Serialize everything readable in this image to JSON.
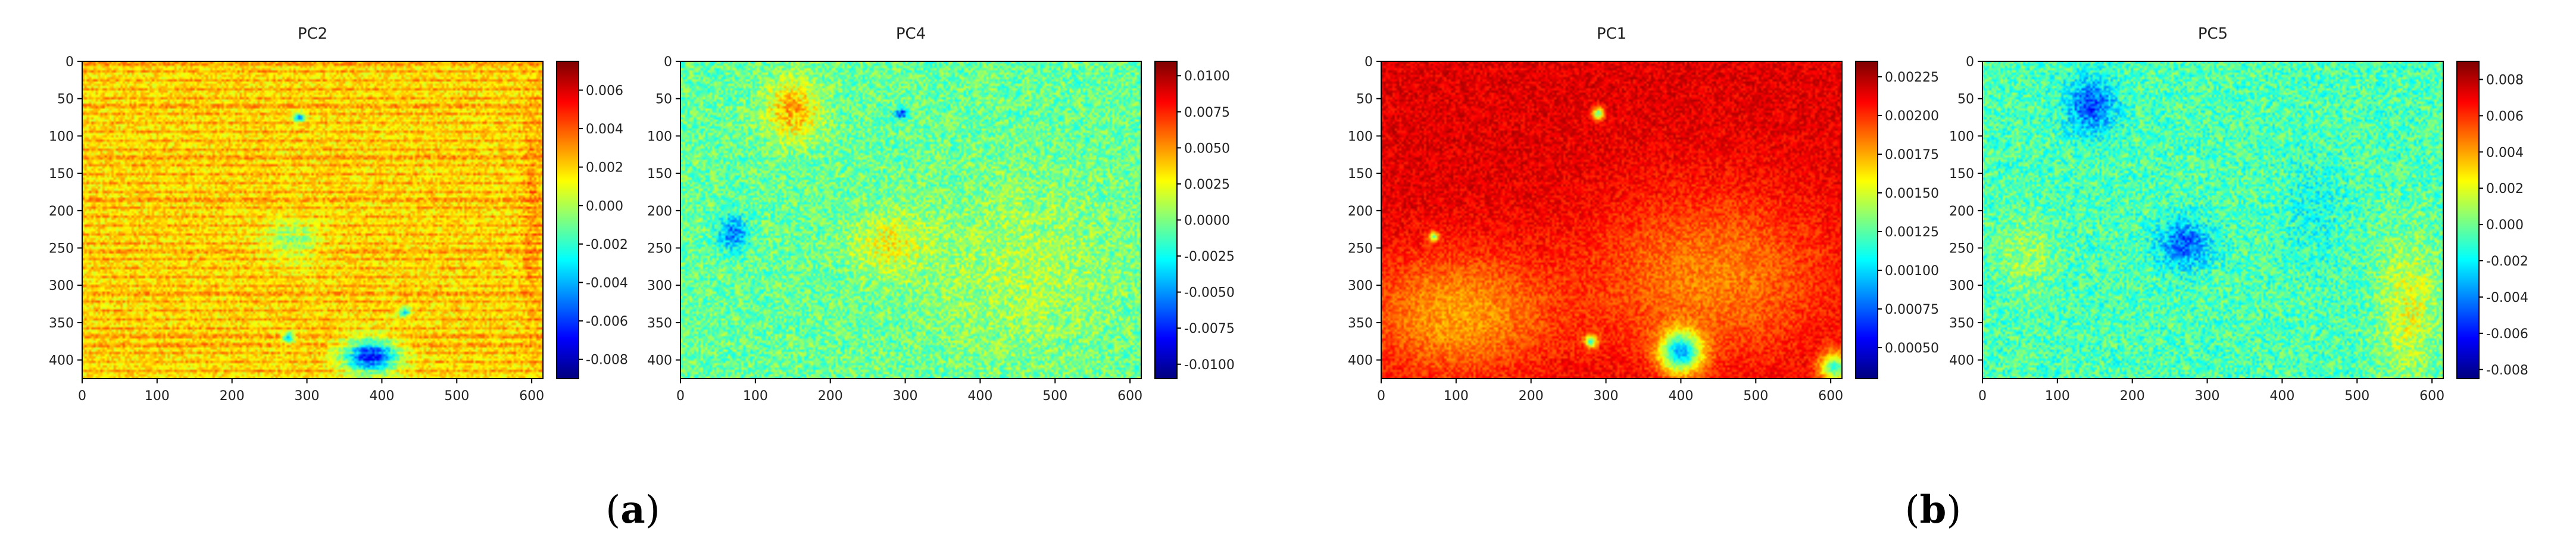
{
  "figure": {
    "panel_labels": [
      {
        "bold": "a",
        "before": "(",
        "after": ")"
      },
      {
        "bold": "b",
        "before": "(",
        "after": ")"
      }
    ]
  },
  "colormap": {
    "name": "jet",
    "stops": [
      "#00007f",
      "#0000ff",
      "#007fff",
      "#00ffff",
      "#7fff7f",
      "#ffff00",
      "#ff7f00",
      "#ff0000",
      "#7f0000"
    ]
  },
  "chart_data": [
    {
      "type": "heatmap",
      "title": "PC2",
      "panel": "a",
      "x_ticks": [
        "0",
        "100",
        "200",
        "300",
        "400",
        "500",
        "600"
      ],
      "y_ticks": [
        "0",
        "50",
        "100",
        "150",
        "200",
        "250",
        "300",
        "350",
        "400"
      ],
      "xlim": [
        0,
        615
      ],
      "ylim": [
        425,
        0
      ],
      "colorbar": {
        "vmin": -0.009,
        "vmax": 0.0075,
        "ticks": [
          "0.006",
          "0.004",
          "0.002",
          "0.000",
          "-0.002",
          "-0.004",
          "-0.006",
          "-0.008"
        ],
        "tick_values": [
          0.006,
          0.004,
          0.002,
          0.0,
          -0.002,
          -0.004,
          -0.006,
          -0.008
        ]
      },
      "field": {
        "base": 0.0017,
        "noise": 0.0012,
        "stripes": 0.0012,
        "blobs": [
          {
            "x": 280,
            "y": 240,
            "rx": 45,
            "ry": 35,
            "v": -0.0025
          },
          {
            "x": 385,
            "y": 395,
            "rx": 45,
            "ry": 28,
            "v": -0.0085
          },
          {
            "x": 290,
            "y": 75,
            "rx": 10,
            "ry": 8,
            "v": -0.006
          },
          {
            "x": 430,
            "y": 335,
            "rx": 10,
            "ry": 8,
            "v": -0.005
          },
          {
            "x": 275,
            "y": 370,
            "rx": 10,
            "ry": 9,
            "v": -0.006
          },
          {
            "x": 600,
            "y": 200,
            "rx": 15,
            "ry": 200,
            "v": 0.001
          }
        ]
      }
    },
    {
      "type": "heatmap",
      "title": "PC4",
      "panel": "a",
      "x_ticks": [
        "0",
        "100",
        "200",
        "300",
        "400",
        "500",
        "600"
      ],
      "y_ticks": [
        "0",
        "50",
        "100",
        "150",
        "200",
        "250",
        "300",
        "350",
        "400"
      ],
      "xlim": [
        0,
        615
      ],
      "ylim": [
        425,
        0
      ],
      "colorbar": {
        "vmin": -0.011,
        "vmax": 0.011,
        "ticks": [
          "0.0100",
          "0.0075",
          "0.0050",
          "0.0025",
          "0.0000",
          "-0.0025",
          "-0.0050",
          "-0.0075",
          "-0.0100"
        ],
        "tick_values": [
          0.01,
          0.0075,
          0.005,
          0.0025,
          0.0,
          -0.0025,
          -0.005,
          -0.0075,
          -0.01
        ]
      },
      "field": {
        "base": -0.0005,
        "noise": 0.0022,
        "stripes": 0.0,
        "blobs": [
          {
            "x": 150,
            "y": 65,
            "rx": 45,
            "ry": 50,
            "v": 0.005
          },
          {
            "x": 280,
            "y": 245,
            "rx": 60,
            "ry": 50,
            "v": 0.003
          },
          {
            "x": 70,
            "y": 230,
            "rx": 25,
            "ry": 30,
            "v": -0.005
          },
          {
            "x": 295,
            "y": 70,
            "rx": 12,
            "ry": 8,
            "v": -0.007
          },
          {
            "x": 460,
            "y": 280,
            "rx": 160,
            "ry": 150,
            "v": 0.0015
          }
        ]
      }
    },
    {
      "type": "heatmap",
      "title": "PC1",
      "panel": "b",
      "x_ticks": [
        "0",
        "100",
        "200",
        "300",
        "400",
        "500",
        "600"
      ],
      "y_ticks": [
        "0",
        "50",
        "100",
        "150",
        "200",
        "250",
        "300",
        "350",
        "400"
      ],
      "xlim": [
        0,
        615
      ],
      "ylim": [
        425,
        0
      ],
      "colorbar": {
        "vmin": 0.0003,
        "vmax": 0.00235,
        "ticks": [
          "0.00225",
          "0.00200",
          "0.00175",
          "0.00150",
          "0.00125",
          "0.00100",
          "0.00075",
          "0.00050"
        ],
        "tick_values": [
          0.00225,
          0.002,
          0.00175,
          0.0015,
          0.00125,
          0.001,
          0.00075,
          0.0005
        ]
      },
      "field": {
        "base": 0.00215,
        "noise": 0.00012,
        "stripes": 0.0,
        "blobs": [
          {
            "x": 100,
            "y": 340,
            "rx": 160,
            "ry": 110,
            "v": -0.00038
          },
          {
            "x": 440,
            "y": 290,
            "rx": 210,
            "ry": 150,
            "v": -0.00032
          },
          {
            "x": 400,
            "y": 390,
            "rx": 35,
            "ry": 35,
            "v": -0.0011
          },
          {
            "x": 605,
            "y": 410,
            "rx": 25,
            "ry": 25,
            "v": -0.0009
          },
          {
            "x": 290,
            "y": 70,
            "rx": 10,
            "ry": 10,
            "v": -0.0009
          },
          {
            "x": 280,
            "y": 375,
            "rx": 10,
            "ry": 10,
            "v": -0.0009
          },
          {
            "x": 70,
            "y": 235,
            "rx": 8,
            "ry": 8,
            "v": -0.0008
          }
        ]
      }
    },
    {
      "type": "heatmap",
      "title": "PC5",
      "panel": "b",
      "x_ticks": [
        "0",
        "100",
        "200",
        "300",
        "400",
        "500",
        "600"
      ],
      "y_ticks": [
        "0",
        "50",
        "100",
        "150",
        "200",
        "250",
        "300",
        "350",
        "400"
      ],
      "xlim": [
        0,
        615
      ],
      "ylim": [
        425,
        0
      ],
      "colorbar": {
        "vmin": -0.0085,
        "vmax": 0.009,
        "ticks": [
          "0.008",
          "0.006",
          "0.004",
          "0.002",
          "0.000",
          "-0.002",
          "-0.004",
          "-0.006",
          "-0.008"
        ],
        "tick_values": [
          0.008,
          0.006,
          0.004,
          0.002,
          0.0,
          -0.002,
          -0.004,
          -0.006,
          -0.008
        ]
      },
      "field": {
        "base": -0.0006,
        "noise": 0.0018,
        "stripes": 0.0,
        "blobs": [
          {
            "x": 145,
            "y": 60,
            "rx": 40,
            "ry": 45,
            "v": -0.0045
          },
          {
            "x": 270,
            "y": 245,
            "rx": 45,
            "ry": 40,
            "v": -0.004
          },
          {
            "x": 570,
            "y": 330,
            "rx": 50,
            "ry": 120,
            "v": 0.0025
          },
          {
            "x": 60,
            "y": 260,
            "rx": 40,
            "ry": 60,
            "v": 0.0015
          },
          {
            "x": 440,
            "y": 200,
            "rx": 50,
            "ry": 80,
            "v": -0.001
          }
        ]
      }
    }
  ]
}
